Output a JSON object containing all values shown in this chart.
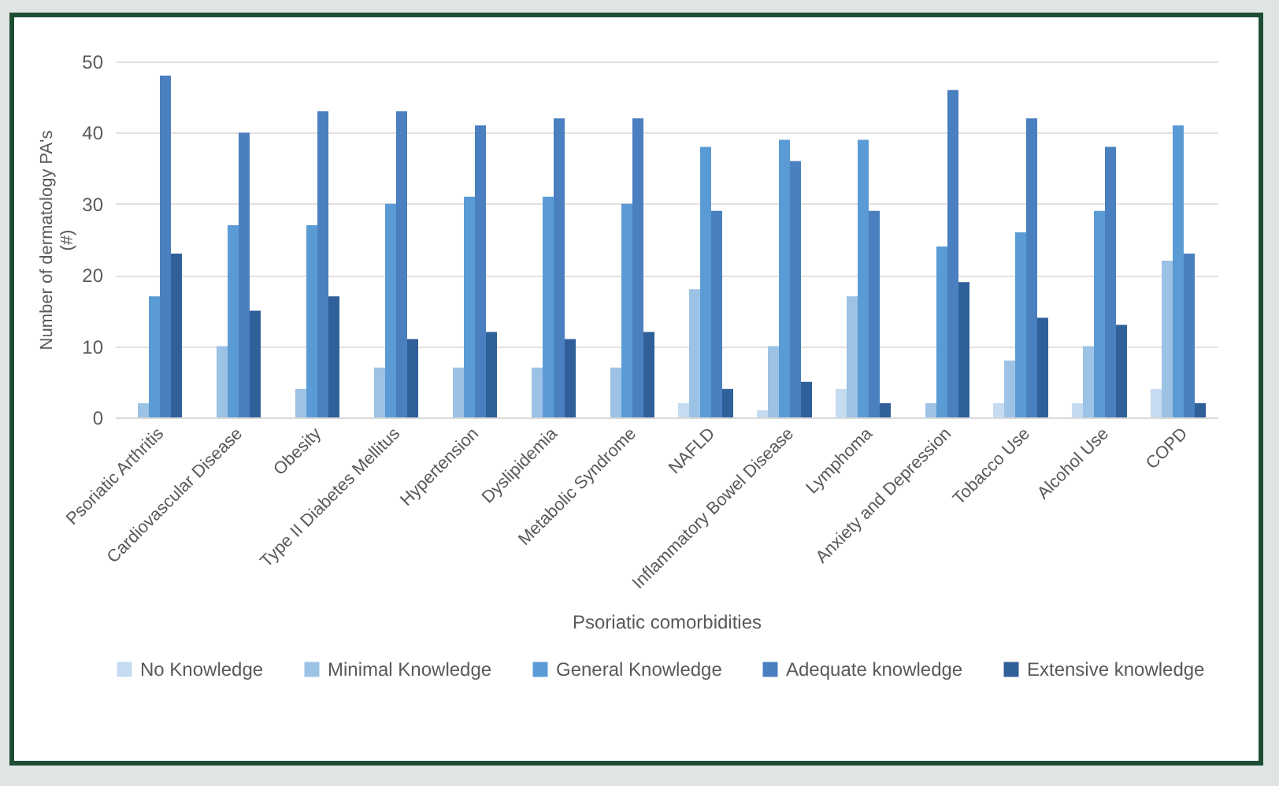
{
  "chart_data": {
    "type": "bar",
    "xlabel": "Psoriatic comorbidities",
    "ylabel": "Number of dermatology PA's (#)",
    "categories": [
      "Psoriatic Arthritis",
      "Cardiovascular Disease",
      "Obesity",
      "Type II Diabetes Mellitus",
      "Hypertension",
      "Dyslipidemia",
      "Metabolic Syndrome",
      "NAFLD",
      "Inflammatory Bowel Disease",
      "Lymphoma",
      "Anxiety and Depression",
      "Tobacco Use",
      "Alcohol Use",
      "COPD"
    ],
    "series": [
      {
        "name": "No Knowledge",
        "color": "#c5dcf0",
        "values": [
          0,
          0,
          0,
          0,
          0,
          0,
          0,
          2,
          1,
          4,
          0,
          2,
          2,
          4
        ]
      },
      {
        "name": "Minimal Knowledge",
        "color": "#9cc2e5",
        "values": [
          2,
          10,
          4,
          7,
          7,
          7,
          7,
          18,
          10,
          17,
          2,
          8,
          10,
          22
        ]
      },
      {
        "name": "General Knowledge",
        "color": "#5b9bd5",
        "values": [
          17,
          27,
          27,
          30,
          31,
          31,
          30,
          38,
          39,
          39,
          24,
          26,
          29,
          41
        ]
      },
      {
        "name": "Adequate knowledge",
        "color": "#4a7fc0",
        "values": [
          48,
          40,
          43,
          43,
          41,
          42,
          42,
          29,
          36,
          29,
          46,
          42,
          38,
          23
        ]
      },
      {
        "name": "Extensive knowledge",
        "color": "#30609a",
        "values": [
          23,
          15,
          17,
          11,
          12,
          11,
          12,
          4,
          5,
          2,
          19,
          14,
          13,
          2
        ]
      }
    ],
    "ylim": [
      0,
      50
    ],
    "yticks": [
      0,
      10,
      20,
      30,
      40,
      50
    ],
    "grid": "y",
    "legend": "bottom"
  }
}
